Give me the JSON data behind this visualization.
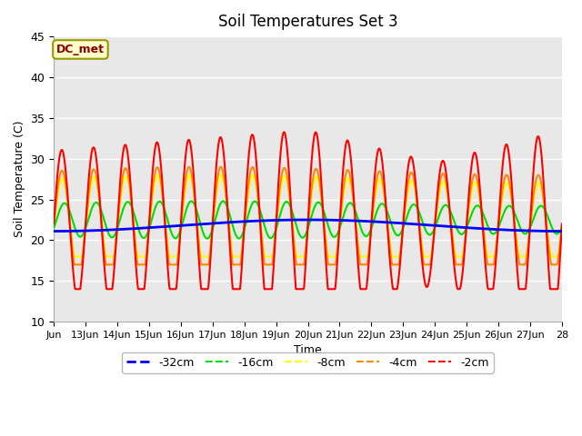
{
  "title": "Soil Temperatures Set 3",
  "xlabel": "Time",
  "ylabel": "Soil Temperature (C)",
  "ylim": [
    10,
    45
  ],
  "xlim": [
    0,
    16
  ],
  "annotation": "DC_met",
  "series_names": [
    "-32cm",
    "-16cm",
    "-8cm",
    "-4cm",
    "-2cm"
  ],
  "series_colors": [
    "#0000ff",
    "#00dd00",
    "#ffff00",
    "#ff8800",
    "#ff0000"
  ],
  "series_linewidths": [
    2.0,
    1.5,
    1.5,
    1.5,
    1.5
  ],
  "xtick_positions": [
    0,
    1,
    2,
    3,
    4,
    5,
    6,
    7,
    8,
    9,
    10,
    11,
    12,
    13,
    14,
    15,
    16
  ],
  "xtick_labels": [
    "Jun",
    "13Jun",
    "14Jun",
    "15Jun",
    "16Jun",
    "17Jun",
    "18Jun",
    "19Jun",
    "20Jun",
    "21Jun",
    "22Jun",
    "23Jun",
    "24Jun",
    "25Jun",
    "26Jun",
    "27Jun",
    "28"
  ],
  "ytick_positions": [
    10,
    15,
    20,
    25,
    30,
    35,
    40,
    45
  ],
  "grid_color": "#ffffff",
  "plot_bg_color": "#e8e8e8",
  "outer_bg_color": "#ffffff"
}
